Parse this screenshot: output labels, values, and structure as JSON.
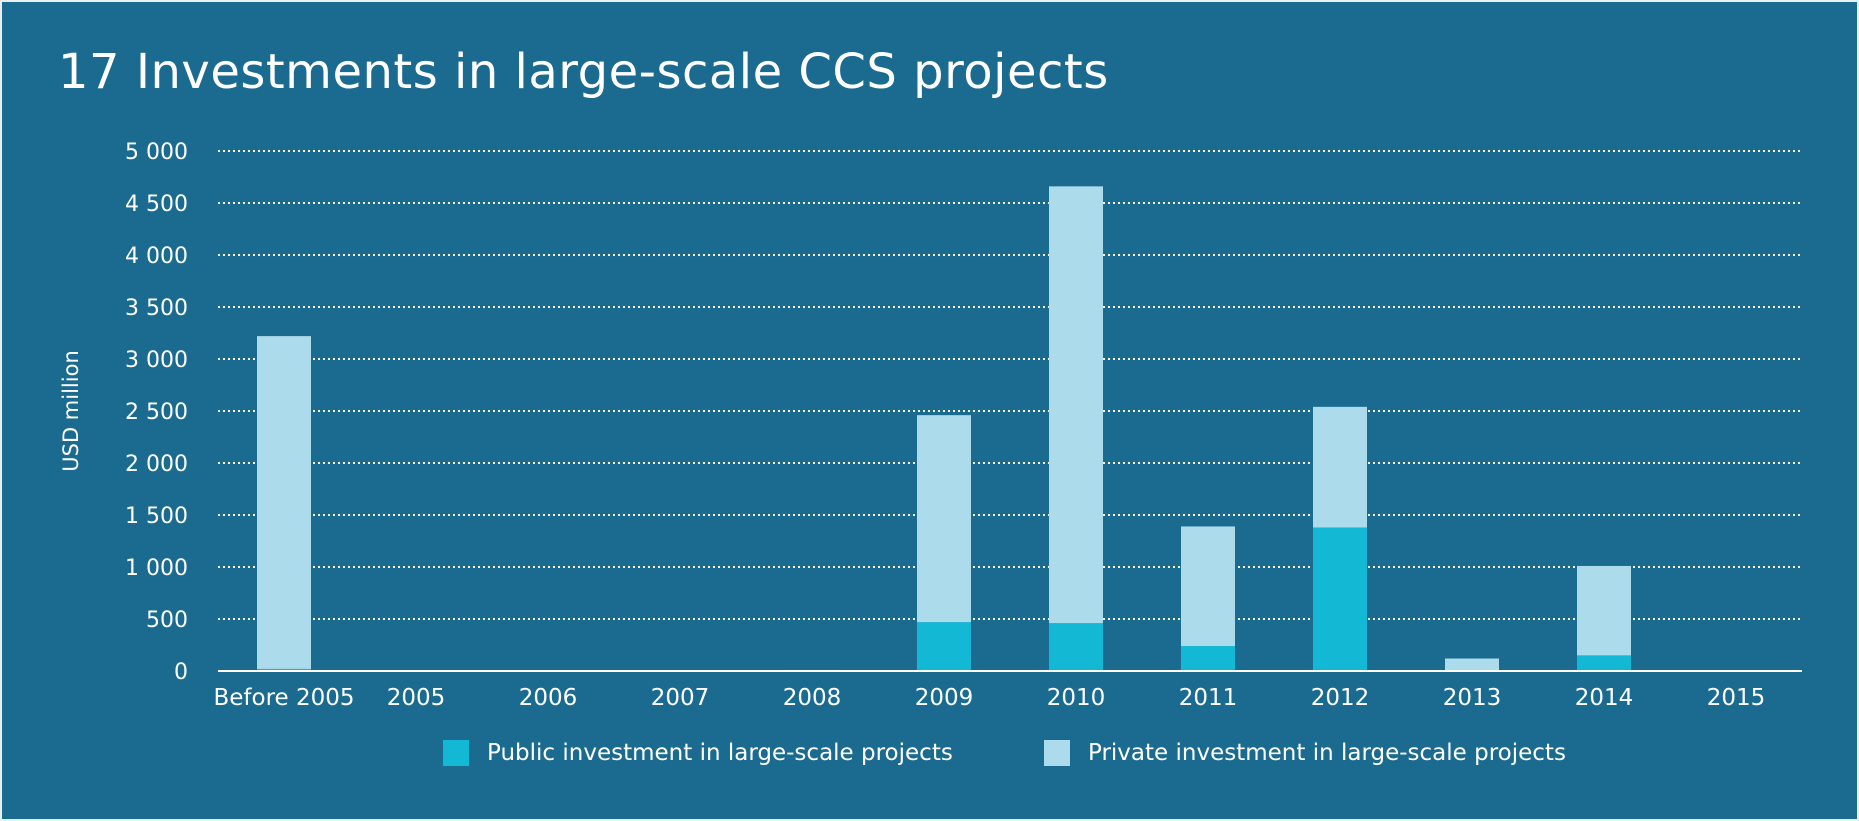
{
  "title": "17 Investments in large-scale CCS projects",
  "colors": {
    "background": "#1a6b8f",
    "public": "#13b8d4",
    "private": "#acdceb",
    "text": "#ffffff",
    "grid": "#ffffff"
  },
  "chart_data": {
    "type": "bar",
    "stacked": true,
    "title": "17 Investments in large-scale CCS projects",
    "xlabel": "",
    "ylabel": "USD million",
    "ylim": [
      0,
      5000
    ],
    "yticks": [
      0,
      500,
      1000,
      1500,
      2000,
      2500,
      3000,
      3500,
      4000,
      4500,
      5000
    ],
    "ytick_labels": [
      "0",
      "500",
      "1 000",
      "1 500",
      "2 000",
      "2 500",
      "3 000",
      "3 500",
      "4 000",
      "4 500",
      "5 000"
    ],
    "grid": "horizontal dotted",
    "legend_position": "bottom",
    "categories": [
      "Before 2005",
      "2005",
      "2006",
      "2007",
      "2008",
      "2009",
      "2010",
      "2011",
      "2012",
      "2013",
      "2014",
      "2015"
    ],
    "series": [
      {
        "name": "Public investment in large-scale projects",
        "color": "#13b8d4",
        "values": [
          20,
          0,
          0,
          0,
          10,
          470,
          460,
          240,
          1380,
          0,
          150,
          0
        ]
      },
      {
        "name": "Private investment in large-scale projects",
        "color": "#acdceb",
        "values": [
          3200,
          0,
          0,
          0,
          0,
          1990,
          4200,
          1150,
          1160,
          120,
          860,
          0
        ]
      }
    ]
  }
}
